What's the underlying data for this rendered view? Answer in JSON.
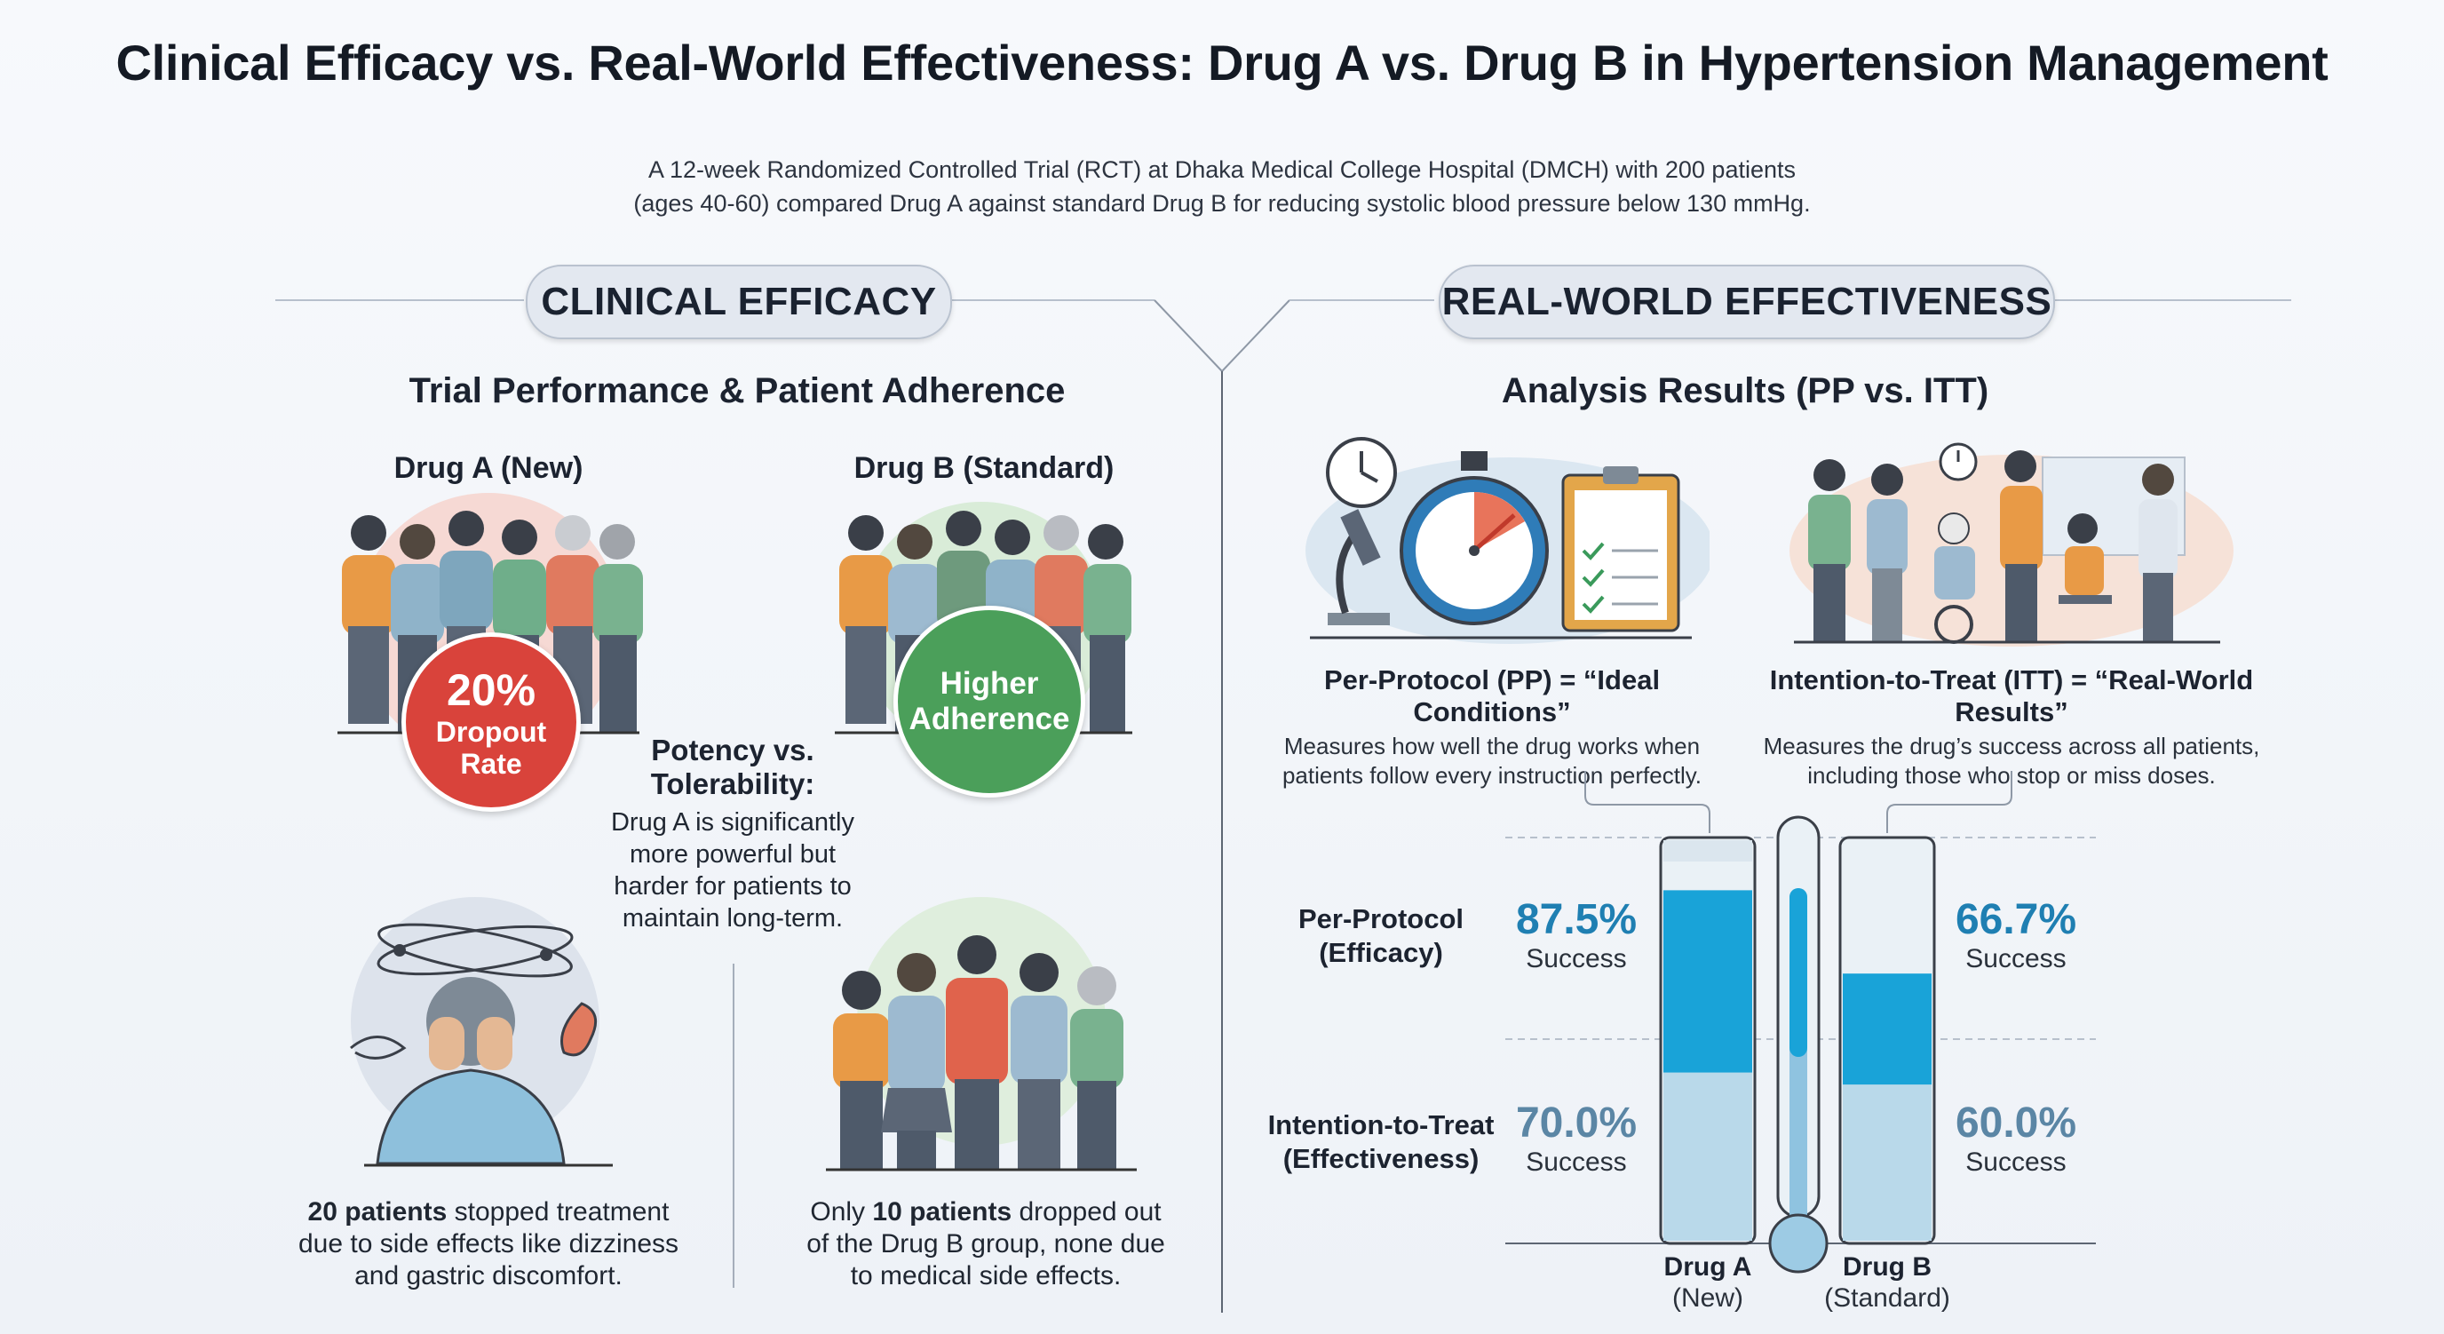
{
  "title": "Clinical Efficacy vs. Real-World Effectiveness: Drug A vs. Drug B in Hypertension Management",
  "subtitle_line1": "A 12-week Randomized Controlled Trial (RCT) at Dhaka Medical College Hospital (DMCH) with 200 patients",
  "subtitle_line2": "(ages 40-60) compared Drug A against standard Drug B for reducing systolic blood pressure below 130 mmHg.",
  "left": {
    "pill": "CLINICAL EFFICACY",
    "heading": "Trial Performance & Patient Adherence",
    "drug_a_label": "Drug A (New)",
    "drug_b_label": "Drug B (Standard)",
    "drug_a_badge_pct": "20%",
    "drug_a_badge_l1": "Dropout",
    "drug_a_badge_l2": "Rate",
    "drug_b_badge_l1": "Higher",
    "drug_b_badge_l2": "Adherence",
    "potency_title_l1": "Potency vs.",
    "potency_title_l2": "Tolerability:",
    "potency_l1": "Drug A is significantly",
    "potency_l2": "more powerful but",
    "potency_l3": "harder for patients to",
    "potency_l4": "maintain long-term.",
    "a_note_bold": "20 patients",
    "a_note_l1": " stopped treatment",
    "a_note_l2": "due to side effects like dizziness",
    "a_note_l3": "and gastric discomfort.",
    "b_note_pre": "Only ",
    "b_note_bold": "10 patients",
    "b_note_l1": " dropped out",
    "b_note_l2": "of the Drug B group, none due",
    "b_note_l3": "to medical side effects."
  },
  "right": {
    "pill": "REAL-WORLD EFFECTIVENESS",
    "heading": "Analysis Results (PP vs. ITT)",
    "pp_title": "Per-Protocol (PP) = “Ideal Conditions”",
    "pp_desc_l1": "Measures how well the drug works when",
    "pp_desc_l2": "patients follow every instruction perfectly.",
    "itt_title": "Intention-to-Treat (ITT) = “Real-World Results”",
    "itt_desc_l1": "Measures the drug’s success across all patients,",
    "itt_desc_l2": "including those who stop or miss doses.",
    "row_pp_l1": "Per-Protocol",
    "row_pp_l2": "(Efficacy)",
    "row_itt_l1": "Intention-to-Treat",
    "row_itt_l2": "(Effectiveness)",
    "success_word": "Success",
    "drug_a_name": "Drug A",
    "drug_a_sub": "(New)",
    "drug_b_name": "Drug B",
    "drug_b_sub": "(Standard)"
  },
  "chart_data": {
    "type": "bar",
    "categories": [
      "Drug A (New)",
      "Drug B (Standard)"
    ],
    "series": [
      {
        "name": "Per-Protocol (Efficacy)",
        "values": [
          87.5,
          66.7
        ],
        "labels": [
          "87.5%",
          "66.7%"
        ]
      },
      {
        "name": "Intention-to-Treat (Effectiveness)",
        "values": [
          70.0,
          60.0
        ],
        "labels": [
          "70.0%",
          "60.0%"
        ]
      }
    ],
    "unit": "%"
  },
  "colors": {
    "dropout_red": "#d9433b",
    "adherence_green": "#4b9f5a",
    "pp_blue": "#1f7fb2",
    "itt_blue": "#5b86a5",
    "tube_blue": "#19a3d8",
    "tube_light": "#b9d9ea"
  }
}
